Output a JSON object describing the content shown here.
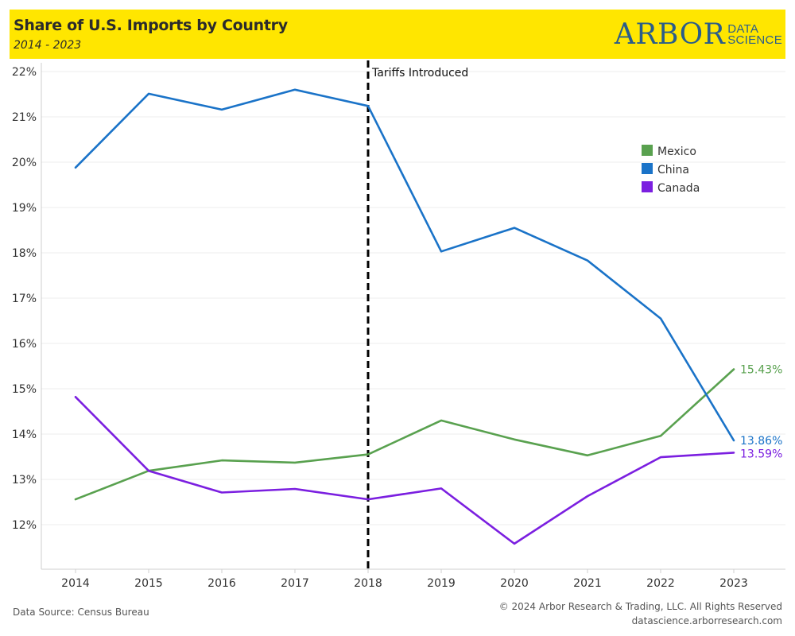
{
  "header": {
    "title": "Share of U.S. Imports by Country",
    "subtitle": "2014 - 2023",
    "logo_main": "ARBOR",
    "logo_sub_1": "DATA",
    "logo_sub_2": "SCIENCE",
    "background_color": "#ffe600",
    "logo_color": "#2a5d8a"
  },
  "footer": {
    "source": "Data Source: Census Bureau",
    "copyright": "© 2024 Arbor Research & Trading, LLC. All Rights Reserved",
    "website": "datascience.arborresearch.com"
  },
  "chart_data": {
    "type": "line",
    "x": [
      "2014",
      "2015",
      "2016",
      "2017",
      "2018",
      "2019",
      "2020",
      "2021",
      "2022",
      "2023"
    ],
    "y_ticks": [
      "12%",
      "13%",
      "14%",
      "15%",
      "16%",
      "17%",
      "18%",
      "19%",
      "20%",
      "21%",
      "22%"
    ],
    "ylim": [
      11.0,
      22.0
    ],
    "grid": true,
    "legend_position": "top-right",
    "series": [
      {
        "name": "Mexico",
        "color": "#59a14f",
        "values": [
          12.56,
          13.19,
          13.42,
          13.37,
          13.55,
          14.3,
          13.88,
          13.53,
          13.96,
          15.43
        ],
        "end_label": "15.43%"
      },
      {
        "name": "China",
        "color": "#1a73c8",
        "values": [
          19.88,
          21.51,
          21.16,
          21.6,
          21.24,
          18.03,
          18.55,
          17.83,
          16.55,
          13.86
        ],
        "end_label": "13.86%"
      },
      {
        "name": "Canada",
        "color": "#7b1fe0",
        "values": [
          14.82,
          13.19,
          12.71,
          12.79,
          12.56,
          12.8,
          11.58,
          12.63,
          13.49,
          13.59
        ],
        "end_label": "13.59%"
      }
    ],
    "annotations": [
      {
        "x": "2018",
        "text": "Tariffs Introduced",
        "style": "dashed-vertical-line"
      }
    ]
  }
}
